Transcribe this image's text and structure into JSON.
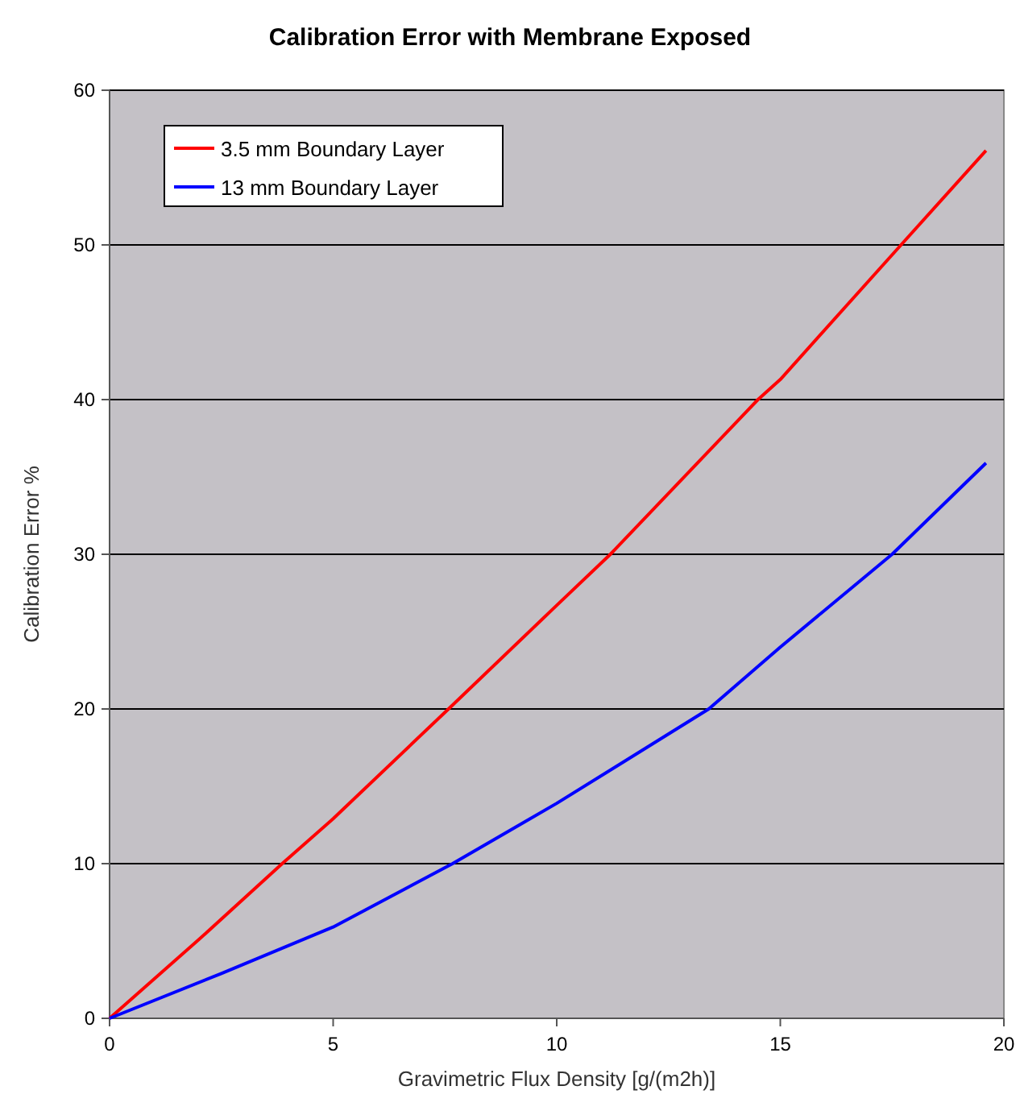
{
  "chart_data": {
    "type": "line",
    "title": "Calibration Error with Membrane Exposed",
    "xlabel": "Gravimetric Flux Density [g/(m2h)]",
    "ylabel": "Calibration Error %",
    "xlim": [
      0,
      20
    ],
    "xticks": [
      0,
      5,
      10,
      15,
      20
    ],
    "ylim": [
      0,
      60
    ],
    "yticks": [
      0,
      10,
      20,
      30,
      40,
      50,
      60
    ],
    "grid": "y",
    "legend": "top left",
    "marker": "none",
    "line_style": "solid",
    "series": [
      {
        "name": "3.5 mm Boundary Layer",
        "color": "#ff0000",
        "x": [
          0,
          2,
          3.86,
          5,
          7.58,
          10,
          11.2,
          14.5,
          15,
          17.7,
          19.6
        ],
        "values": [
          0,
          5.1,
          10,
          12.9,
          20,
          26.7,
          30,
          40,
          41.3,
          50,
          56.1
        ]
      },
      {
        "name": "13 mm Boundary Layer",
        "color": "#0000ff",
        "x": [
          0,
          2.5,
          5,
          7.67,
          10,
          13.4,
          15,
          17.5,
          19.6
        ],
        "values": [
          0,
          2.9,
          5.9,
          10,
          13.9,
          20,
          24,
          30,
          35.9
        ]
      }
    ]
  }
}
